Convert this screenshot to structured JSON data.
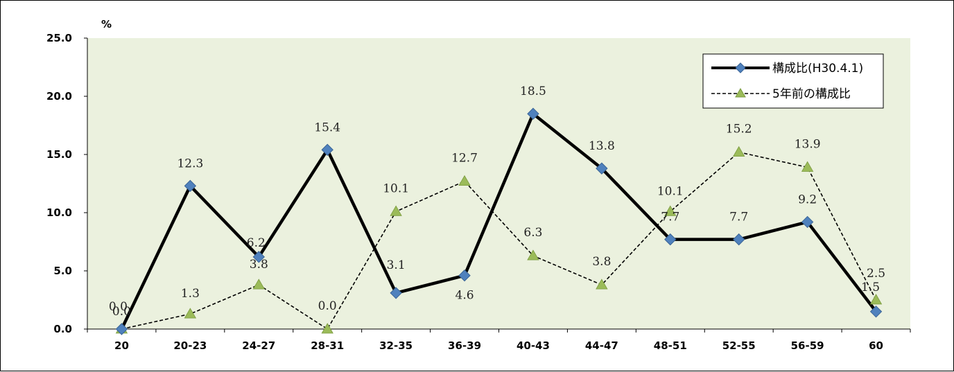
{
  "chart_data": {
    "type": "line",
    "ylabel": "%",
    "ylim": [
      0,
      25
    ],
    "y_ticks": [
      "0.0",
      "5.0",
      "10.0",
      "15.0",
      "20.0",
      "25.0"
    ],
    "categories": [
      "20",
      "20-23",
      "24-27",
      "28-31",
      "32-35",
      "36-39",
      "40-43",
      "44-47",
      "48-51",
      "52-55",
      "56-59",
      "60"
    ],
    "series": [
      {
        "name": "構成比(H30.4.1)",
        "style": "solid",
        "marker": "diamond",
        "color": "#000000",
        "marker_color": "#4f81bd",
        "values": [
          0.0,
          12.3,
          6.2,
          15.4,
          3.1,
          4.6,
          18.5,
          13.8,
          7.7,
          7.7,
          9.2,
          1.5
        ],
        "labels": [
          "0.0",
          "12.3",
          "6.2",
          "15.4",
          "3.1",
          "4.6",
          "18.5",
          "13.8",
          "7.7",
          "7.7",
          "9.2",
          "1.5"
        ]
      },
      {
        "name": "5年前の構成比",
        "style": "dashed",
        "marker": "triangle",
        "color": "#000000",
        "marker_color": "#9bbb59",
        "values": [
          0.0,
          1.3,
          3.8,
          0.0,
          10.1,
          12.7,
          6.3,
          3.8,
          10.1,
          15.2,
          13.9,
          2.5
        ],
        "labels": [
          "0.0",
          "1.3",
          "3.8",
          "0.0",
          "10.1",
          "12.7",
          "6.3",
          "3.8",
          "10.1",
          "15.2",
          "13.9",
          "2.5"
        ]
      }
    ],
    "plot_background": "#ebf1de",
    "grid": false,
    "legend_position": "top-right"
  }
}
